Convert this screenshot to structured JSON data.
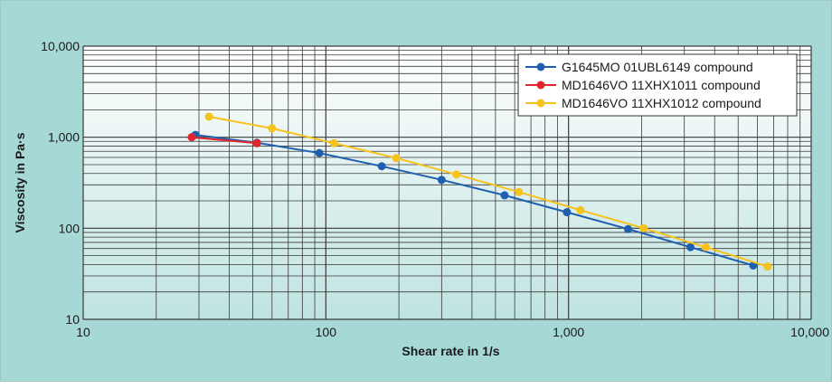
{
  "chart_data": {
    "type": "line",
    "xlabel": "Shear rate in 1/s",
    "ylabel": "Viscosity in Pa·s",
    "xscale": "log",
    "yscale": "log",
    "xlim": [
      10,
      10000
    ],
    "ylim": [
      10,
      10000
    ],
    "x_ticks": [
      {
        "value": 10,
        "label": "10"
      },
      {
        "value": 100,
        "label": "100"
      },
      {
        "value": 1000,
        "label": "1,000"
      },
      {
        "value": 10000,
        "label": "10,000"
      }
    ],
    "y_ticks": [
      {
        "value": 10,
        "label": "10"
      },
      {
        "value": 100,
        "label": "100"
      },
      {
        "value": 1000,
        "label": "1,000"
      },
      {
        "value": 10000,
        "label": "10,000"
      }
    ],
    "grid": true,
    "legend_position": "top-right",
    "background_gradient": [
      "#ffffff",
      "#bfe3e0"
    ],
    "series": [
      {
        "name": "G1645MO 01UBL6149 compound",
        "color": "#1f5fb0",
        "x": [
          29,
          52,
          94,
          170,
          300,
          545,
          985,
          1760,
          3180,
          5770
        ],
        "y": [
          1060,
          870,
          670,
          480,
          340,
          230,
          150,
          98,
          62,
          39
        ]
      },
      {
        "name": "MD1646VO 11XHX1011 compound",
        "color": "#e0252b",
        "x": [
          28,
          52
        ],
        "y": [
          1000,
          860
        ]
      },
      {
        "name": "MD1646VO 11XHX1012 compound",
        "color": "#f7c21c",
        "x": [
          33,
          60,
          108,
          195,
          345,
          625,
          1120,
          2040,
          3680,
          6620
        ],
        "y": [
          1680,
          1250,
          860,
          590,
          390,
          250,
          158,
          100,
          62,
          38
        ]
      }
    ]
  }
}
